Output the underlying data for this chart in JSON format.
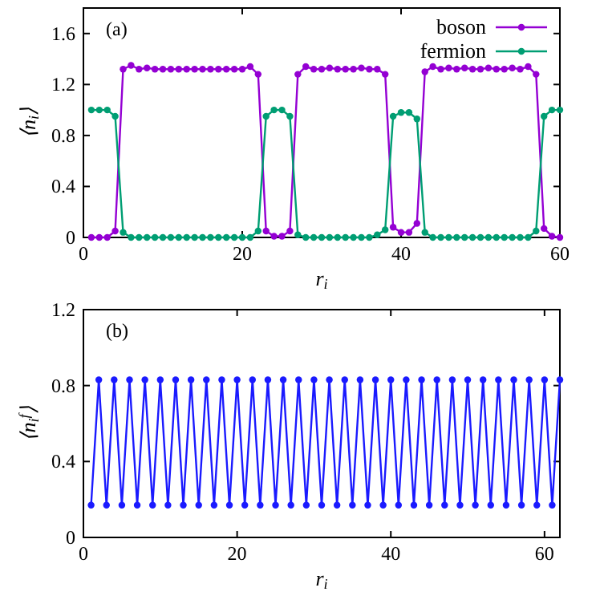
{
  "chart_data": [
    {
      "type": "line",
      "annotations": [
        "(a)"
      ],
      "xlabel": "r$_{i}$",
      "ylabel": "⟨n$_{i}$⟩",
      "x": [
        1,
        2,
        3,
        4,
        5,
        6,
        7,
        8,
        9,
        10,
        11,
        12,
        13,
        14,
        15,
        16,
        17,
        18,
        19,
        20,
        21,
        22,
        23,
        24,
        25,
        26,
        27,
        28,
        29,
        30,
        31,
        32,
        33,
        34,
        35,
        36,
        37,
        38,
        39,
        40,
        41,
        42,
        43,
        44,
        45,
        46,
        47,
        48,
        49,
        50,
        51,
        52,
        53,
        54,
        55,
        56,
        57,
        58,
        59,
        60
      ],
      "xlim": [
        0,
        60
      ],
      "xticks": [
        0,
        20,
        40,
        60
      ],
      "ylim": [
        0,
        1.8
      ],
      "yticks": [
        0,
        0.4,
        0.8,
        1.2,
        1.6
      ],
      "legend": "top right",
      "marker": "circle",
      "line_style": "solid",
      "series": [
        {
          "name": "boson",
          "color": "#9400d3",
          "values": [
            0,
            0,
            0,
            0.05,
            1.32,
            1.35,
            1.32,
            1.33,
            1.32,
            1.32,
            1.32,
            1.32,
            1.32,
            1.32,
            1.32,
            1.32,
            1.32,
            1.32,
            1.32,
            1.32,
            1.34,
            1.28,
            0.05,
            0.01,
            0.01,
            0.05,
            1.28,
            1.34,
            1.32,
            1.32,
            1.33,
            1.32,
            1.32,
            1.32,
            1.33,
            1.32,
            1.32,
            1.28,
            0.08,
            0.04,
            0.04,
            0.11,
            1.3,
            1.34,
            1.32,
            1.33,
            1.32,
            1.33,
            1.32,
            1.32,
            1.33,
            1.32,
            1.32,
            1.33,
            1.32,
            1.34,
            1.28,
            0.07,
            0.01,
            0
          ]
        },
        {
          "name": "fermion",
          "color": "#009e73",
          "values": [
            1,
            1,
            1,
            0.95,
            0.04,
            0,
            0,
            0,
            0,
            0,
            0,
            0,
            0,
            0,
            0,
            0,
            0,
            0,
            0,
            0,
            0,
            0.05,
            0.95,
            1,
            1,
            0.95,
            0.02,
            0,
            0,
            0,
            0,
            0,
            0,
            0,
            0,
            0,
            0.02,
            0.06,
            0.95,
            0.98,
            0.98,
            0.93,
            0.04,
            0,
            0,
            0,
            0,
            0,
            0,
            0,
            0,
            0,
            0,
            0,
            0,
            0,
            0.05,
            0.95,
            1,
            1
          ]
        }
      ]
    },
    {
      "type": "line",
      "annotations": [
        "(b)"
      ],
      "xlabel": "r$_{i}$",
      "ylabel": "⟨n$_{i}$$^{f}$⟩",
      "x": [
        1,
        2,
        3,
        4,
        5,
        6,
        7,
        8,
        9,
        10,
        11,
        12,
        13,
        14,
        15,
        16,
        17,
        18,
        19,
        20,
        21,
        22,
        23,
        24,
        25,
        26,
        27,
        28,
        29,
        30,
        31,
        32,
        33,
        34,
        35,
        36,
        37,
        38,
        39,
        40,
        41,
        42,
        43,
        44,
        45,
        46,
        47,
        48,
        49,
        50,
        51,
        52,
        53,
        54,
        55,
        56,
        57,
        58,
        59,
        60,
        61,
        62
      ],
      "xlim": [
        0,
        62
      ],
      "xticks": [
        0,
        20,
        40,
        60
      ],
      "ylim": [
        0,
        1.2
      ],
      "yticks": [
        0,
        0.4,
        0.8,
        1.2
      ],
      "marker": "circle",
      "line_style": "solid",
      "series": [
        {
          "color": "#1a1aff",
          "values": [
            0.17,
            0.83,
            0.17,
            0.83,
            0.17,
            0.83,
            0.17,
            0.83,
            0.17,
            0.83,
            0.17,
            0.83,
            0.17,
            0.83,
            0.17,
            0.83,
            0.17,
            0.83,
            0.17,
            0.83,
            0.17,
            0.83,
            0.17,
            0.83,
            0.17,
            0.83,
            0.17,
            0.83,
            0.17,
            0.83,
            0.17,
            0.83,
            0.17,
            0.83,
            0.17,
            0.83,
            0.17,
            0.83,
            0.17,
            0.83,
            0.17,
            0.83,
            0.17,
            0.83,
            0.17,
            0.83,
            0.17,
            0.83,
            0.17,
            0.83,
            0.17,
            0.83,
            0.17,
            0.83,
            0.17,
            0.83,
            0.17,
            0.83,
            0.17,
            0.83,
            0.17,
            0.83
          ]
        }
      ]
    }
  ]
}
